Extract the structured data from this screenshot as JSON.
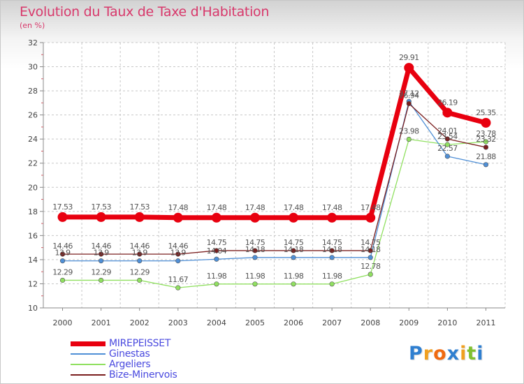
{
  "chart_data": {
    "type": "line",
    "title": "Evolution du Taux de Taxe d'Habitation",
    "subtitle": "(en %)",
    "xlabel": "",
    "ylabel": "",
    "ylim": [
      10,
      32
    ],
    "yticks": [
      10,
      12,
      14,
      16,
      18,
      20,
      22,
      24,
      26,
      28,
      30,
      32
    ],
    "categories": [
      "2000",
      "2001",
      "2002",
      "2003",
      "2004",
      "2005",
      "2006",
      "2007",
      "2008",
      "2009",
      "2010",
      "2011"
    ],
    "grid": true,
    "legend_position": "bottom-left",
    "series": [
      {
        "name": "MIREPEISSET",
        "color": "#e8000f",
        "values": [
          17.53,
          17.53,
          17.53,
          17.48,
          17.48,
          17.48,
          17.48,
          17.48,
          17.48,
          29.91,
          26.19,
          25.35
        ],
        "labels": [
          "17.53",
          "17.53",
          "17.53",
          "17.48",
          "17.48",
          "17.48",
          "17.48",
          "17.48",
          "17.48",
          "29.91",
          "26.19",
          "25.35"
        ]
      },
      {
        "name": "Ginestas",
        "color": "#4f8fd6",
        "values": [
          13.9,
          13.9,
          13.9,
          13.9,
          14.04,
          14.18,
          14.18,
          14.18,
          14.18,
          27.12,
          22.57,
          21.88
        ],
        "labels": [
          "13.9",
          "13.9",
          "13.9",
          "13.9",
          "14.04",
          "14.18",
          "14.18",
          "14.18",
          "14.18",
          "27.12",
          "22.57",
          "21.88"
        ]
      },
      {
        "name": "Argeliers",
        "color": "#90e060",
        "values": [
          12.29,
          12.29,
          12.29,
          11.67,
          11.98,
          11.98,
          11.98,
          11.98,
          12.78,
          23.98,
          23.54,
          23.78
        ],
        "labels": [
          "12.29",
          "12.29",
          "12.29",
          "11.67",
          "11.98",
          "11.98",
          "11.98",
          "11.98",
          "12.78",
          "23.98",
          "23.54",
          "23.78"
        ]
      },
      {
        "name": "Bize-Minervois",
        "color": "#7a1e1e",
        "values": [
          14.46,
          14.46,
          14.46,
          14.46,
          14.75,
          14.75,
          14.75,
          14.75,
          14.75,
          26.94,
          24.01,
          23.32
        ],
        "labels": [
          "14.46",
          "14.46",
          "14.46",
          "14.46",
          "14.75",
          "14.75",
          "14.75",
          "14.75",
          "14.75",
          "26.94",
          "24.01",
          "23.32"
        ]
      }
    ]
  },
  "logo": {
    "letters": [
      "P",
      "r",
      "o",
      "x",
      "i",
      "t",
      "i"
    ],
    "colors": [
      "#2f7fd0",
      "#f0a020",
      "#f06a10",
      "#2f7fd0",
      "#f0a020",
      "#80c030",
      "#2f7fd0"
    ]
  }
}
